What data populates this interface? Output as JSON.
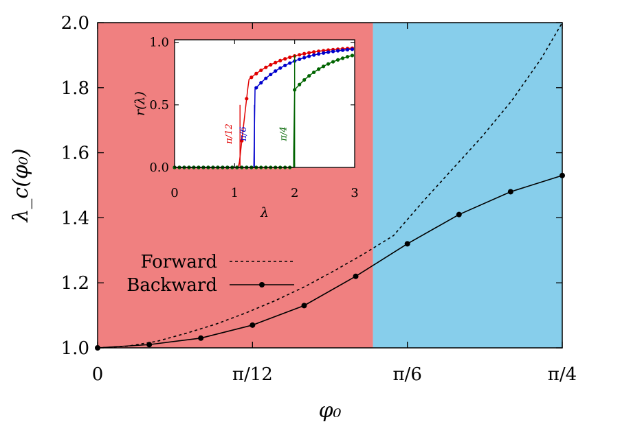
{
  "chart_data": [
    {
      "type": "line",
      "xlabel": "φ₀",
      "ylabel": "λ_c(φ₀)",
      "xlim": [
        0,
        0.7854
      ],
      "ylim": [
        1.0,
        2.0
      ],
      "x_ticks": [
        {
          "value": 0,
          "label": "0"
        },
        {
          "value": 0.2618,
          "label": "π/12"
        },
        {
          "value": 0.5236,
          "label": "π/6"
        },
        {
          "value": 0.7854,
          "label": "π/4"
        }
      ],
      "y_ticks": [
        {
          "value": 1.0,
          "label": "1.0"
        },
        {
          "value": 1.2,
          "label": "1.2"
        },
        {
          "value": 1.4,
          "label": "1.4"
        },
        {
          "value": 1.6,
          "label": "1.6"
        },
        {
          "value": 1.8,
          "label": "1.8"
        },
        {
          "value": 2.0,
          "label": "2.0"
        }
      ],
      "regions": [
        {
          "x_from": 0,
          "x_to": 0.4654,
          "color": "#f08080"
        },
        {
          "x_from": 0.4654,
          "x_to": 0.7854,
          "color": "#87ceeb"
        }
      ],
      "legend_position": "center-left",
      "series": [
        {
          "name": "Forward",
          "style": "dashed",
          "color": "#000000",
          "x": [
            0,
            0.05,
            0.1,
            0.15,
            0.2,
            0.25,
            0.3,
            0.35,
            0.4,
            0.45,
            0.5,
            0.55,
            0.6,
            0.65,
            0.7,
            0.75,
            0.7854
          ],
          "values": [
            1.0,
            1.005,
            1.02,
            1.045,
            1.073,
            1.107,
            1.145,
            1.188,
            1.237,
            1.289,
            1.345,
            1.45,
            1.55,
            1.65,
            1.76,
            1.89,
            2.0
          ]
        },
        {
          "name": "Backward",
          "style": "solid-markers",
          "color": "#000000",
          "x": [
            0,
            0.0873,
            0.1745,
            0.2618,
            0.3491,
            0.4363,
            0.5236,
            0.6109,
            0.6981,
            0.7854
          ],
          "values": [
            1.0,
            1.01,
            1.03,
            1.07,
            1.13,
            1.22,
            1.32,
            1.41,
            1.48,
            1.53
          ]
        }
      ]
    },
    {
      "type": "line",
      "xlabel": "λ",
      "ylabel": "r(λ)",
      "xlim": [
        -0.1,
        3.0
      ],
      "ylim": [
        0,
        1.02
      ],
      "x_ticks": [
        {
          "value": 0,
          "label": "0"
        },
        {
          "value": 1,
          "label": "1"
        },
        {
          "value": 2,
          "label": "2"
        },
        {
          "value": 3,
          "label": "3"
        }
      ],
      "y_ticks": [
        {
          "value": 0,
          "label": "0.0"
        },
        {
          "value": 0.5,
          "label": "0.5"
        },
        {
          "value": 1.0,
          "label": "1.0"
        }
      ],
      "series": [
        {
          "name": "π/12",
          "color": "#e00000",
          "lambda_c": 1.07,
          "transition_x": 1.09,
          "transition_r": 0.0,
          "fit_a": 0.85,
          "fit_k": 1.6
        },
        {
          "name": "π/6",
          "color": "#0000cc",
          "lambda_c": 1.33,
          "transition_x": 1.33,
          "transition_r": 0.5,
          "fit_a": 0.85,
          "fit_k": 1.6
        },
        {
          "name": "π/4",
          "color": "#006400",
          "lambda_c": 2.0,
          "transition_x": 2.0,
          "transition_r": 0.9,
          "fit_a": 0.85,
          "fit_k": 1.6
        }
      ]
    }
  ],
  "colors": {
    "red_region": "#f08080",
    "blue_region": "#87ceeb",
    "frame": "#000000"
  }
}
